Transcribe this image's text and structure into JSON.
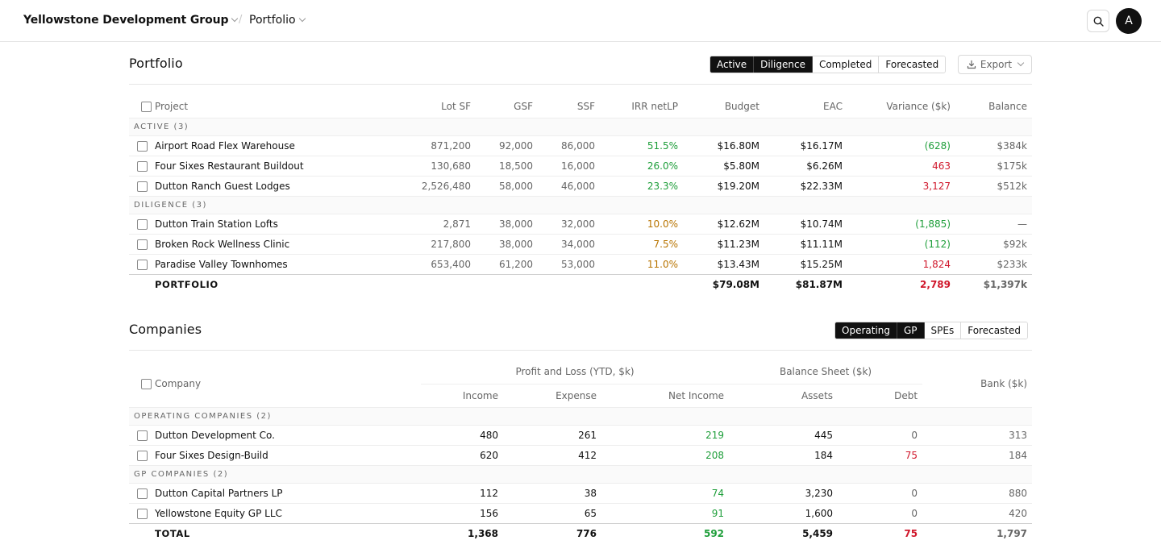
{
  "header": {
    "org_name": "Yellowstone Development Group",
    "separator": "/",
    "page_name": "Portfolio",
    "avatar_initial": "A"
  },
  "portfolio": {
    "title": "Portfolio",
    "filters": [
      {
        "label": "Active",
        "selected": true
      },
      {
        "label": "Diligence",
        "selected": true
      },
      {
        "label": "Completed",
        "selected": false
      },
      {
        "label": "Forecasted",
        "selected": false
      }
    ],
    "export_label": "Export",
    "columns": [
      "Project",
      "Lot SF",
      "GSF",
      "SSF",
      "IRR netLP",
      "Budget",
      "EAC",
      "Variance ($k)",
      "Balance"
    ],
    "groups": [
      {
        "label": "ACTIVE (3)",
        "rows": [
          {
            "project": "Airport Road Flex Warehouse",
            "lot_sf": "871,200",
            "gsf": "92,000",
            "ssf": "86,000",
            "irr": "51.5%",
            "budget": "$16.80M",
            "eac": "$16.17M",
            "variance": "(628)",
            "balance": "$384k"
          },
          {
            "project": "Four Sixes Restaurant Buildout",
            "lot_sf": "130,680",
            "gsf": "18,500",
            "ssf": "16,000",
            "irr": "26.0%",
            "budget": "$5.80M",
            "eac": "$6.26M",
            "variance": "463",
            "balance": "$175k"
          },
          {
            "project": "Dutton Ranch Guest Lodges",
            "lot_sf": "2,526,480",
            "gsf": "58,000",
            "ssf": "46,000",
            "irr": "23.3%",
            "budget": "$19.20M",
            "eac": "$22.33M",
            "variance": "3,127",
            "balance": "$512k"
          }
        ]
      },
      {
        "label": "DILIGENCE (3)",
        "rows": [
          {
            "project": "Dutton Train Station Lofts",
            "lot_sf": "2,871",
            "gsf": "38,000",
            "ssf": "32,000",
            "irr": "10.0%",
            "budget": "$12.62M",
            "eac": "$10.74M",
            "variance": "(1,885)",
            "balance": "—"
          },
          {
            "project": "Broken Rock Wellness Clinic",
            "lot_sf": "217,800",
            "gsf": "38,000",
            "ssf": "34,000",
            "irr": "7.5%",
            "budget": "$11.23M",
            "eac": "$11.11M",
            "variance": "(112)",
            "balance": "$92k"
          },
          {
            "project": "Paradise Valley Townhomes",
            "lot_sf": "653,400",
            "gsf": "61,200",
            "ssf": "53,000",
            "irr": "11.0%",
            "budget": "$13.43M",
            "eac": "$15.25M",
            "variance": "1,824",
            "balance": "$233k"
          }
        ]
      }
    ],
    "total": {
      "label": "PORTFOLIO",
      "budget": "$79.08M",
      "eac": "$81.87M",
      "variance": "2,789",
      "balance": "$1,397k"
    }
  },
  "companies": {
    "title": "Companies",
    "filters": [
      {
        "label": "Operating",
        "selected": true
      },
      {
        "label": "GP",
        "selected": true
      },
      {
        "label": "SPEs",
        "selected": false
      },
      {
        "label": "Forecasted",
        "selected": false
      }
    ],
    "col_company": "Company",
    "group_pl": "Profit and Loss (YTD, $k)",
    "group_bs": "Balance Sheet ($k)",
    "col_bank": "Bank ($k)",
    "columns": [
      "Income",
      "Expense",
      "Net Income",
      "Assets",
      "Debt"
    ],
    "groups": [
      {
        "label": "OPERATING COMPANIES (2)",
        "rows": [
          {
            "company": "Dutton Development Co.",
            "income": "480",
            "expense": "261",
            "net": "219",
            "assets": "445",
            "debt": "0",
            "bank": "313"
          },
          {
            "company": "Four Sixes Design-Build",
            "income": "620",
            "expense": "412",
            "net": "208",
            "assets": "184",
            "debt": "75",
            "bank": "184"
          }
        ]
      },
      {
        "label": "GP COMPANIES (2)",
        "rows": [
          {
            "company": "Dutton Capital Partners LP",
            "income": "112",
            "expense": "38",
            "net": "74",
            "assets": "3,230",
            "debt": "0",
            "bank": "880"
          },
          {
            "company": "Yellowstone Equity GP LLC",
            "income": "156",
            "expense": "65",
            "net": "91",
            "assets": "1,600",
            "debt": "0",
            "bank": "420"
          }
        ]
      }
    ],
    "total": {
      "label": "TOTAL",
      "income": "1,368",
      "expense": "776",
      "net": "592",
      "assets": "5,459",
      "debt": "75",
      "bank": "1,797"
    }
  }
}
